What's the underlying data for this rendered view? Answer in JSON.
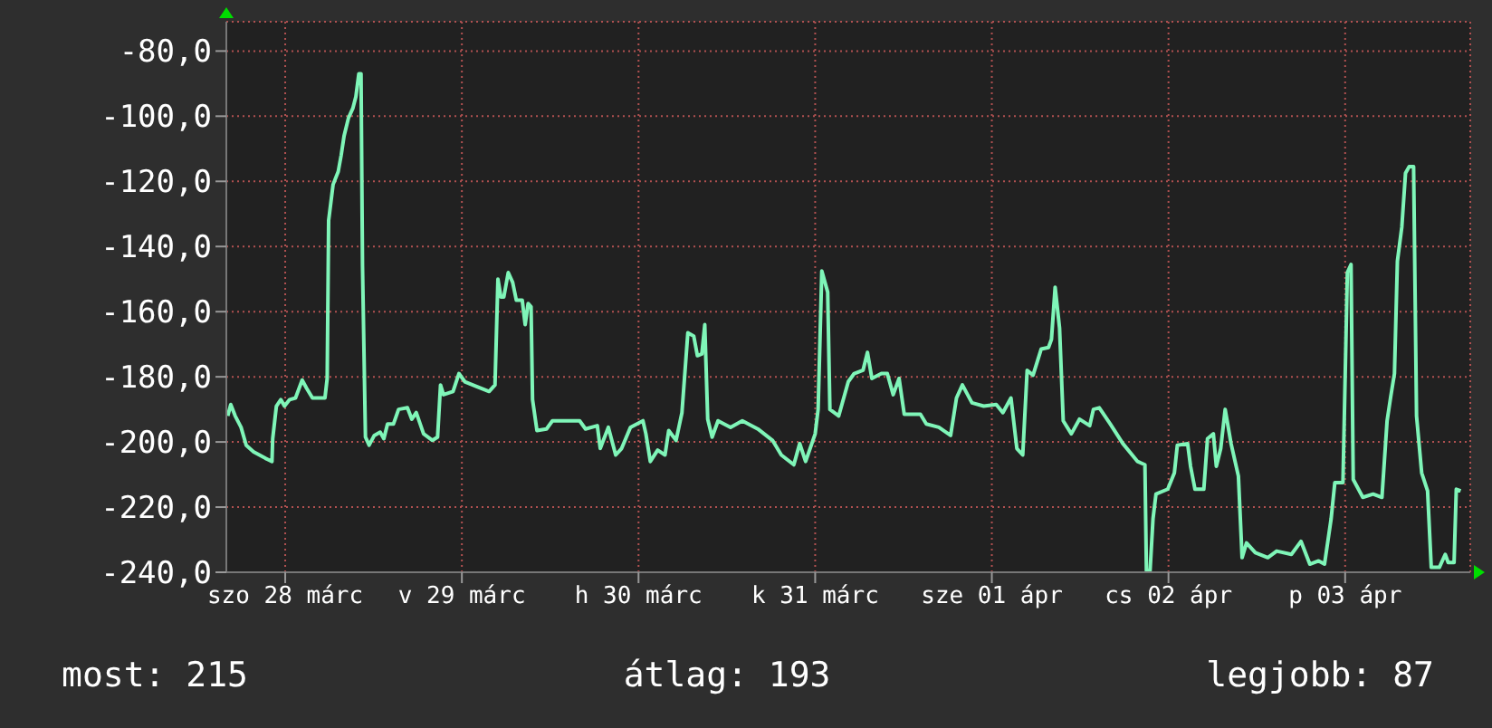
{
  "chart_data": {
    "type": "line",
    "xlim": [
      "--03-28T04:00",
      "--04-04T05:00"
    ],
    "xticks": [
      {
        "value": "--03-28T12:00",
        "label": "szo 28 márc"
      },
      {
        "value": "--03-29T12:00",
        "label": "v 29 márc"
      },
      {
        "value": "--03-30T12:00",
        "label": "h 30 márc"
      },
      {
        "value": "--03-31T12:00",
        "label": "k 31 márc"
      },
      {
        "value": "--04-01T12:00",
        "label": "sze 01 ápr"
      },
      {
        "value": "--04-02T12:00",
        "label": "cs 02 ápr"
      },
      {
        "value": "--04-03T12:00",
        "label": "p 03 ápr"
      }
    ],
    "ylim": [
      -240,
      -71
    ],
    "yticks": [
      {
        "value": -80,
        "label": "-80,0"
      },
      {
        "value": -100,
        "label": "-100,0"
      },
      {
        "value": -120,
        "label": "-120,0"
      },
      {
        "value": -140,
        "label": "-140,0"
      },
      {
        "value": -160,
        "label": "-160,0"
      },
      {
        "value": -180,
        "label": "-180,0"
      },
      {
        "value": -200,
        "label": "-200,0"
      },
      {
        "value": -220,
        "label": "-220,0"
      },
      {
        "value": -240,
        "label": "-240,0"
      }
    ],
    "grid": true,
    "legend": false,
    "marker": "none",
    "line_style": "solid",
    "annotations": [
      "most: 215",
      "átlag: 193",
      "legjobb: 87"
    ],
    "series": [
      {
        "color": "#7ff5b8",
        "x": [
          "--03-28T04:12",
          "--03-28T04:36",
          "--03-28T05:12",
          "--03-28T06:00",
          "--03-28T06:42",
          "--03-28T07:42",
          "--03-28T08:30",
          "--03-28T09:18",
          "--03-28T10:12",
          "--03-28T10:18",
          "--03-28T10:48",
          "--03-28T11:24",
          "--03-28T11:54",
          "--03-28T12:36",
          "--03-28T13:24",
          "--03-28T14:18",
          "--03-28T14:54",
          "--03-28T15:42",
          "--03-28T17:24",
          "--03-28T17:42",
          "--03-28T17:54",
          "--03-28T18:30",
          "--03-28T19:12",
          "--03-28T19:36",
          "--03-28T20:00",
          "--03-28T20:36",
          "--03-28T21:12",
          "--03-28T21:36",
          "--03-28T22:00",
          "--03-28T22:18",
          "--03-28T22:30",
          "--03-28T22:54",
          "--03-28T23:24",
          "--03-29T00:06",
          "--03-29T00:54",
          "--03-29T01:24",
          "--03-29T01:54",
          "--03-29T02:42",
          "--03-29T03:24",
          "--03-29T04:36",
          "--03-29T05:12",
          "--03-29T05:48",
          "--03-29T06:48",
          "--03-29T08:00",
          "--03-29T08:42",
          "--03-29T09:06",
          "--03-29T09:30",
          "--03-29T10:48",
          "--03-29T11:36",
          "--03-29T12:24",
          "--03-29T14:00",
          "--03-29T15:42",
          "--03-29T16:30",
          "--03-29T16:54",
          "--03-29T17:18",
          "--03-29T17:42",
          "--03-29T18:18",
          "--03-29T18:54",
          "--03-29T19:24",
          "--03-29T20:12",
          "--03-29T20:36",
          "--03-29T21:00",
          "--03-29T21:24",
          "--03-29T21:36",
          "--03-29T22:12",
          "--03-29T23:30",
          "--03-30T00:18",
          "--03-30T01:54",
          "--03-30T04:00",
          "--03-30T04:48",
          "--03-30T06:24",
          "--03-30T06:48",
          "--03-30T07:54",
          "--03-30T08:54",
          "--03-30T09:42",
          "--03-30T10:54",
          "--03-30T12:36",
          "--03-30T13:00",
          "--03-30T13:36",
          "--03-30T14:36",
          "--03-30T15:36",
          "--03-30T16:06",
          "--03-30T17:06",
          "--03-30T17:54",
          "--03-30T18:42",
          "--03-30T19:30",
          "--03-30T20:00",
          "--03-30T20:36",
          "--03-30T21:00",
          "--03-30T21:24",
          "--03-30T22:00",
          "--03-30T22:48",
          "--03-31T00:30",
          "--03-31T02:06",
          "--03-31T04:12",
          "--03-31T06:12",
          "--03-31T07:24",
          "--03-31T09:06",
          "--03-31T09:54",
          "--03-31T10:42",
          "--03-31T12:00",
          "--03-31T12:24",
          "--03-31T12:54",
          "--03-31T13:42",
          "--03-31T14:00",
          "--03-31T15:12",
          "--03-31T16:30",
          "--03-31T17:18",
          "--03-31T18:30",
          "--03-31T19:06",
          "--03-31T19:42",
          "--03-31T21:00",
          "--03-31T21:48",
          "--03-31T22:36",
          "--03-31T23:24",
          "--04-01T00:06",
          "--04-01T02:18",
          "--04-01T03:06",
          "--04-01T04:48",
          "--04-01T06:24",
          "--04-01T07:12",
          "--04-01T08:00",
          "--04-01T09:18",
          "--04-01T10:54",
          "--04-01T12:36",
          "--04-01T13:30",
          "--04-01T14:36",
          "--04-01T15:24",
          "--04-01T16:12",
          "--04-01T16:48",
          "--04-01T17:36",
          "--04-01T18:42",
          "--04-01T19:42",
          "--04-01T20:06",
          "--04-01T20:36",
          "--04-01T21:12",
          "--04-01T21:42",
          "--04-01T22:48",
          "--04-01T23:54",
          "--04-02T01:18",
          "--04-02T01:48",
          "--04-02T02:36",
          "--04-02T04:06",
          "--04-02T05:48",
          "--04-02T07:48",
          "--04-02T08:48",
          "--04-02T09:00",
          "--04-02T09:30",
          "--04-02T09:54",
          "--04-02T10:18",
          "--04-02T11:54",
          "--04-02T12:48",
          "--04-02T13:12",
          "--04-02T14:36",
          "--04-02T15:00",
          "--04-02T15:36",
          "--04-02T16:48",
          "--04-02T17:18",
          "--04-02T18:06",
          "--04-02T18:30",
          "--04-02T19:06",
          "--04-02T19:42",
          "--04-02T20:30",
          "--04-02T21:30",
          "--04-02T22:00",
          "--04-02T22:36",
          "--04-02T23:48",
          "--04-03T01:30",
          "--04-03T02:42",
          "--04-03T04:42",
          "--04-03T06:00",
          "--04-03T07:12",
          "--04-03T08:24",
          "--04-03T09:12",
          "--04-03T10:06",
          "--04-03T10:36",
          "--04-03T11:42",
          "--04-03T12:18",
          "--04-03T12:48",
          "--04-03T13:06",
          "--04-03T14:24",
          "--04-03T15:48",
          "--04-03T17:00",
          "--04-03T17:42",
          "--04-03T18:12",
          "--04-03T18:42",
          "--04-03T19:06",
          "--04-03T19:42",
          "--04-03T20:12",
          "--04-03T20:42",
          "--04-03T21:18",
          "--04-03T21:42",
          "--04-03T22:24",
          "--04-03T23:12",
          "--04-03T23:42",
          "--04-04T00:48",
          "--04-04T01:36",
          "--04-04T02:00",
          "--04-04T02:48",
          "--04-04T03:06",
          "--04-04T03:42"
        ],
        "values": [
          -192,
          -188.5,
          -192,
          -195.5,
          -201,
          -203,
          -204,
          -205,
          -206,
          -199,
          -189,
          -187,
          -189,
          -187,
          -186.5,
          -181,
          -183.5,
          -186.5,
          -186.5,
          -180.5,
          -132,
          -121,
          -117,
          -112,
          -106,
          -100.5,
          -97.5,
          -94,
          -87,
          -87,
          -146,
          -198.5,
          -201,
          -198,
          -197,
          -199,
          -194.5,
          -194.5,
          -190,
          -189.5,
          -193,
          -191,
          -197.5,
          -199.5,
          -198.5,
          -182.5,
          -185.5,
          -184.5,
          -179,
          -181.5,
          -183,
          -184.5,
          -182.5,
          -150,
          -155.5,
          -155.5,
          -148,
          -151,
          -156.5,
          -156.5,
          -164,
          -157.5,
          -158.5,
          -187,
          -196.5,
          -196,
          -193.5,
          -193.5,
          -193.5,
          -196,
          -195,
          -202,
          -195.5,
          -204,
          -202,
          -195.5,
          -193.5,
          -197.5,
          -206,
          -202.5,
          -204,
          -196.5,
          -199.5,
          -191,
          -166.5,
          -167.5,
          -173.5,
          -173,
          -164,
          -193,
          -198.5,
          -193.5,
          -195.5,
          -193.5,
          -196,
          -199.5,
          -204,
          -207,
          -200.5,
          -206,
          -197.5,
          -190,
          -147.5,
          -154,
          -190,
          -192,
          -181.5,
          -179,
          -178,
          -172.5,
          -180.5,
          -179,
          -179,
          -185.5,
          -180.5,
          -191.5,
          -191.5,
          -194.5,
          -195.5,
          -198,
          -186.5,
          -182.5,
          -188,
          -189,
          -188.5,
          -191,
          -186.5,
          -202,
          -204,
          -178,
          -179.5,
          -171.5,
          -171,
          -168.5,
          -152.5,
          -165,
          -193.5,
          -197.5,
          -193,
          -195,
          -190,
          -189.5,
          -194.5,
          -200.5,
          -206,
          -207,
          -239.5,
          -239.5,
          -223.5,
          -216,
          -214.5,
          -209.5,
          -201,
          -200.5,
          -207.5,
          -214.5,
          -214.5,
          -199,
          -197.5,
          -207.5,
          -202,
          -190,
          -200.5,
          -210.5,
          -235.5,
          -231,
          -234,
          -235.5,
          -233.5,
          -234.5,
          -230.5,
          -237.5,
          -236.5,
          -237.5,
          -223.5,
          -212.5,
          -212.5,
          -148,
          -145.5,
          -211.5,
          -217,
          -216,
          -217,
          -193.5,
          -186,
          -179,
          -144.5,
          -134,
          -117.5,
          -115.5,
          -115.5,
          -192,
          -209.5,
          -215,
          -238.5,
          -238.5,
          -234.5,
          -237,
          -237,
          -214.5,
          -215
        ]
      }
    ]
  }
}
